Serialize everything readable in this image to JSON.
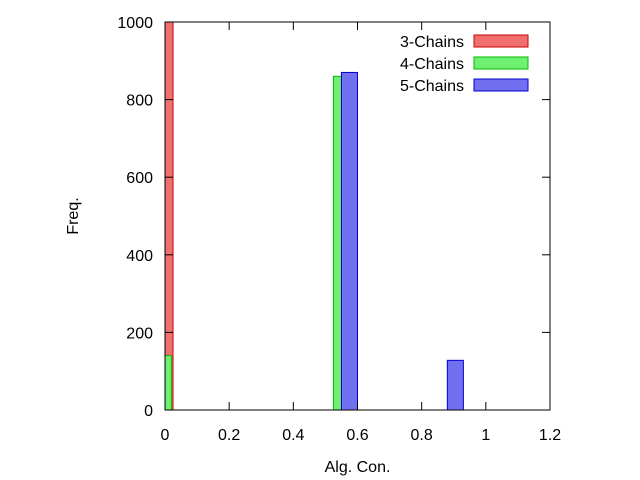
{
  "chart_data": {
    "type": "bar",
    "xlabel": "Alg. Con.",
    "ylabel": "Freq.",
    "xlim": [
      0,
      1.2
    ],
    "ylim": [
      0,
      1000
    ],
    "x_ticks": [
      {
        "value": 0,
        "label": "0"
      },
      {
        "value": 0.2,
        "label": "0.2"
      },
      {
        "value": 0.4,
        "label": "0.4"
      },
      {
        "value": 0.6,
        "label": "0.6"
      },
      {
        "value": 0.8,
        "label": "0.8"
      },
      {
        "value": 1,
        "label": "1"
      },
      {
        "value": 1.2,
        "label": "1.2"
      }
    ],
    "y_ticks": [
      {
        "value": 0,
        "label": "0"
      },
      {
        "value": 200,
        "label": "200"
      },
      {
        "value": 400,
        "label": "400"
      },
      {
        "value": 600,
        "label": "600"
      },
      {
        "value": 800,
        "label": "800"
      },
      {
        "value": 1000,
        "label": "1000"
      }
    ],
    "grid": false,
    "legend_position": "top-right",
    "series": [
      {
        "name": "3-Chains",
        "fill": "#f07070",
        "stroke": "#cc0000",
        "bars": [
          {
            "x0": 0.0,
            "x1": 0.025,
            "value": 1000
          }
        ]
      },
      {
        "name": "4-Chains",
        "fill": "#70f070",
        "stroke": "#00bb00",
        "bars": [
          {
            "x0": 0.0,
            "x1": 0.02,
            "value": 140
          },
          {
            "x0": 0.525,
            "x1": 0.55,
            "value": 860
          }
        ]
      },
      {
        "name": "5-Chains",
        "fill": "#7070f0",
        "stroke": "#0000cc",
        "bars": [
          {
            "x0": 0.55,
            "x1": 0.6,
            "value": 870
          },
          {
            "x0": 0.88,
            "x1": 0.93,
            "value": 128
          }
        ]
      }
    ]
  }
}
